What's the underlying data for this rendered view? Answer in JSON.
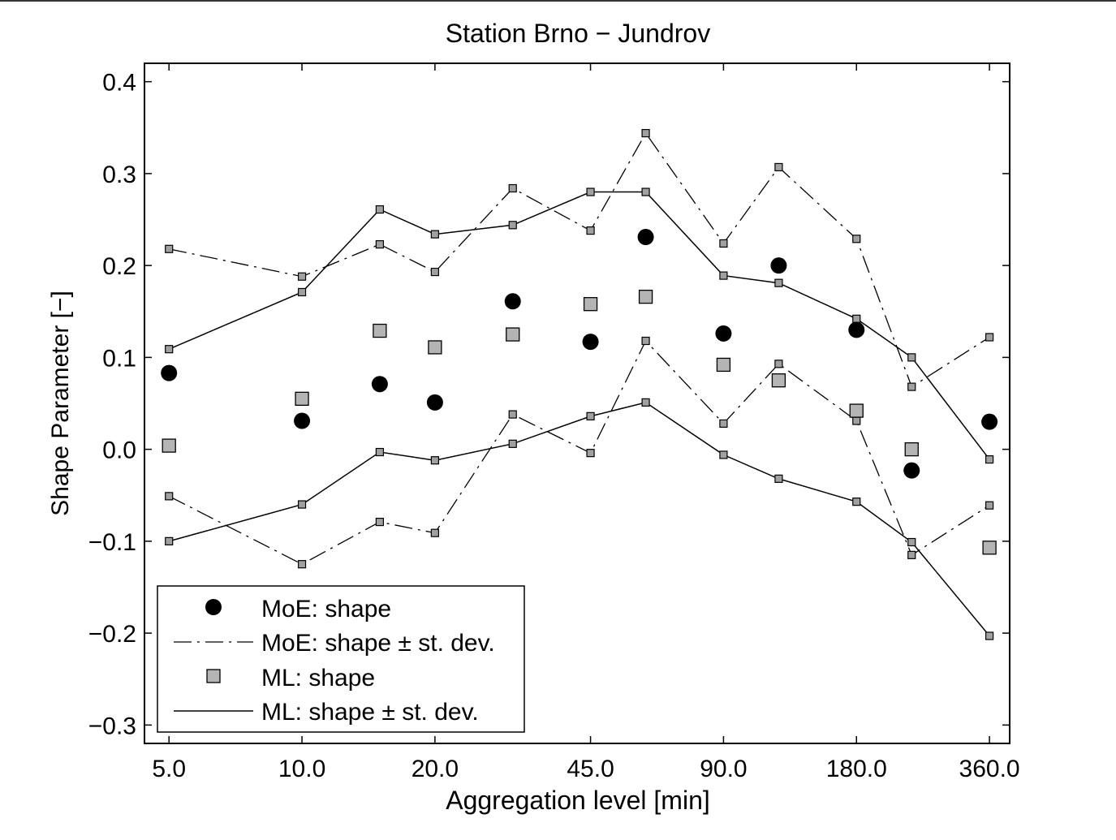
{
  "chart_data": {
    "type": "scatter",
    "title": "Station Brno − Jundrov",
    "xlabel": "Aggregation level [min]",
    "ylabel": "Shape Parameter [−]",
    "x_scale": "log2",
    "x_ticks": [
      5,
      10,
      20,
      45,
      90,
      180,
      360
    ],
    "x_tick_labels": [
      "5.0",
      "10.0",
      "20.0",
      "45.0",
      "90.0",
      "180.0",
      "360.0"
    ],
    "y_ticks": [
      -0.3,
      -0.2,
      -0.1,
      0.0,
      0.1,
      0.2,
      0.3,
      0.4
    ],
    "y_tick_labels": [
      "−0.3",
      "−0.2",
      "−0.1",
      "0.0",
      "0.1",
      "0.2",
      "0.3",
      "0.4"
    ],
    "xlim": [
      4.4,
      400
    ],
    "ylim": [
      -0.32,
      0.42
    ],
    "x": [
      5,
      10,
      15,
      20,
      30,
      45,
      60,
      90,
      120,
      180,
      240,
      360
    ],
    "grid": false,
    "legend_position": "bottom-left",
    "series": [
      {
        "name": "MoE: shape",
        "marker": "circle",
        "values": [
          0.083,
          0.031,
          0.071,
          0.051,
          0.161,
          0.117,
          0.231,
          0.126,
          0.2,
          0.13,
          -0.023,
          0.03
        ]
      },
      {
        "name": "MoE: shape ± st. dev.",
        "line": "dash-dot",
        "marker": "small-square",
        "upper": [
          0.218,
          0.188,
          0.223,
          0.193,
          0.284,
          0.238,
          0.344,
          0.224,
          0.307,
          0.229,
          0.068,
          0.122
        ],
        "lower": [
          -0.051,
          -0.125,
          -0.079,
          -0.091,
          0.038,
          -0.004,
          0.118,
          0.028,
          0.093,
          0.031,
          -0.115,
          -0.061
        ]
      },
      {
        "name": "ML: shape",
        "marker": "square",
        "values": [
          0.004,
          0.055,
          0.129,
          0.111,
          0.125,
          0.158,
          0.166,
          0.092,
          0.075,
          0.042,
          0.0,
          -0.107
        ]
      },
      {
        "name": "ML: shape ± st. dev.",
        "line": "solid",
        "marker": "small-square",
        "upper": [
          0.109,
          0.171,
          0.261,
          0.234,
          0.244,
          0.28,
          0.28,
          0.189,
          0.181,
          0.142,
          0.1,
          -0.011
        ],
        "lower": [
          -0.1,
          -0.06,
          -0.003,
          -0.012,
          0.006,
          0.036,
          0.051,
          -0.006,
          -0.032,
          -0.057,
          -0.101,
          -0.203
        ]
      }
    ],
    "colors": {
      "moe_marker": "#000000",
      "ml_marker": "#b4b4b4",
      "small_marker": "#a0a0a0",
      "line": "#000000"
    }
  }
}
